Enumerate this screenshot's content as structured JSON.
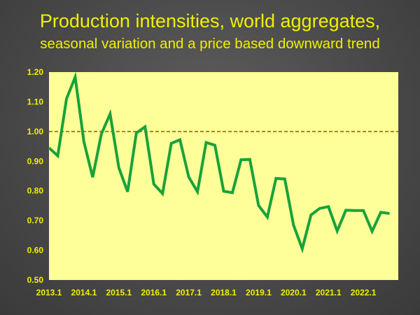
{
  "title": "Production intensities, world aggregates,",
  "subtitle": "seasonal variation and a price based downward trend",
  "chart_data": {
    "type": "line",
    "title": "Production intensities, world aggregates,",
    "subtitle": "seasonal variation and a price based downward trend",
    "xlabel": "",
    "ylabel": "",
    "ylim": [
      0.5,
      1.2
    ],
    "y_ticks": [
      "0.50",
      "0.60",
      "0.70",
      "0.80",
      "0.90",
      "1.00",
      "1.10",
      "1.20"
    ],
    "x_ticks": [
      "2013.1",
      "2014.1",
      "2015.1",
      "2016.1",
      "2017.1",
      "2018.1",
      "2019.1",
      "2020.1",
      "2021.1",
      "2022.1"
    ],
    "reference_line": 1.0,
    "grid": false,
    "colors": {
      "line": "#1aa23a",
      "reference": "#a0861e",
      "plot_background": "#ffff99",
      "text": "#f0f000"
    },
    "series": [
      {
        "x": [
          "2013.1",
          "2013.2",
          "2013.3",
          "2013.4",
          "2014.1",
          "2014.2",
          "2014.3",
          "2014.4",
          "2015.1",
          "2015.2",
          "2015.3",
          "2015.4",
          "2016.1",
          "2016.2",
          "2016.3",
          "2016.4",
          "2017.1",
          "2017.2",
          "2017.3",
          "2017.4",
          "2018.1",
          "2018.2",
          "2018.3",
          "2018.4",
          "2019.1",
          "2019.2",
          "2019.3",
          "2019.4",
          "2020.1",
          "2020.2",
          "2020.3",
          "2020.4",
          "2021.1",
          "2021.2",
          "2021.3",
          "2021.4",
          "2022.1",
          "2022.2",
          "2022.3",
          "2022.4"
        ],
        "values": [
          0.945,
          0.918,
          1.11,
          1.183,
          0.965,
          0.846,
          0.992,
          1.059,
          0.878,
          0.797,
          0.995,
          1.016,
          0.823,
          0.791,
          0.96,
          0.972,
          0.847,
          0.797,
          0.963,
          0.954,
          0.799,
          0.794,
          0.905,
          0.906,
          0.751,
          0.712,
          0.842,
          0.84,
          0.685,
          0.605,
          0.719,
          0.741,
          0.747,
          0.665,
          0.735,
          0.734,
          0.734,
          0.664,
          0.728,
          0.724
        ]
      }
    ]
  }
}
